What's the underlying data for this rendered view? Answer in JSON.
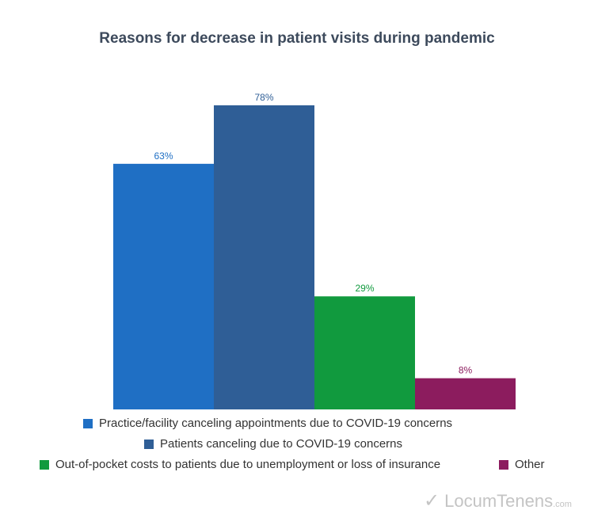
{
  "chart_data": {
    "type": "bar",
    "title": "Reasons for decrease in patient visits during pandemic",
    "categories": [
      "Practice/facility canceling appointments due to COVID-19 concerns",
      "Patients canceling due to COVID-19 concerns",
      "Out-of-pocket costs to patients due to unemployment or loss of insurance",
      "Other"
    ],
    "values": [
      63,
      78,
      29,
      8
    ],
    "labels": [
      "63%",
      "78%",
      "29%",
      "8%"
    ],
    "colors": [
      "#1f6fc4",
      "#2f5e96",
      "#119a3e",
      "#8c1c5e"
    ],
    "ylim": [
      0,
      80
    ],
    "grid": false,
    "legend": "bottom"
  },
  "logo": {
    "name": "LocumTenens",
    "suffix": ".com"
  }
}
